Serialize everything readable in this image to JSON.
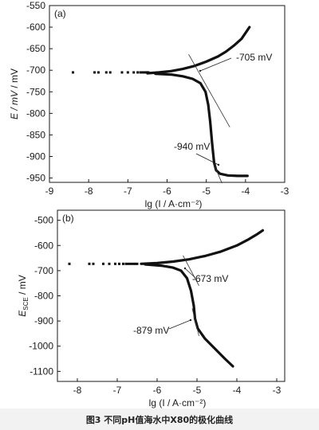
{
  "figure": {
    "caption": "图3   不同pH值海水中X80的极化曲线"
  },
  "chart_data": [
    {
      "type": "line",
      "panel_label": "(a)",
      "xlabel": "lg (I / A·cm⁻²)",
      "ylabel": "E / mV",
      "xlim": [
        -9,
        -3
      ],
      "ylim": [
        -960,
        -550
      ],
      "x_ticks": [
        -9,
        -8,
        -7,
        -6,
        -5,
        -4,
        -3
      ],
      "y_ticks": [
        -550,
        -600,
        -650,
        -700,
        -750,
        -800,
        -850,
        -900,
        -950
      ],
      "series": [
        {
          "anodic": [
            [
              -6.5,
              -707
            ],
            [
              -6.2,
              -705
            ],
            [
              -5.9,
              -702
            ],
            [
              -5.6,
              -697
            ],
            [
              -5.3,
              -690
            ],
            [
              -5.0,
              -680
            ],
            [
              -4.7,
              -668
            ],
            [
              -4.5,
              -657
            ],
            [
              -4.3,
              -643
            ],
            [
              -4.1,
              -627
            ],
            [
              -3.9,
              -600
            ]
          ],
          "cathodic": [
            [
              -6.3,
              -708
            ],
            [
              -5.9,
              -710
            ],
            [
              -5.6,
              -714
            ],
            [
              -5.35,
              -720
            ],
            [
              -5.15,
              -730
            ],
            [
              -5.02,
              -750
            ],
            [
              -4.95,
              -780
            ],
            [
              -4.9,
              -820
            ],
            [
              -4.85,
              -870
            ],
            [
              -4.8,
              -915
            ],
            [
              -4.75,
              -932
            ],
            [
              -4.65,
              -940
            ],
            [
              -4.45,
              -944
            ],
            [
              -4.2,
              -945
            ],
            [
              -3.95,
              -945
            ]
          ],
          "scatter": [
            [
              -8.4,
              -705
            ],
            [
              -7.85,
              -705
            ],
            [
              -7.75,
              -705
            ],
            [
              -7.55,
              -705
            ],
            [
              -7.45,
              -705
            ],
            [
              -7.15,
              -705
            ],
            [
              -7.0,
              -705
            ],
            [
              -6.85,
              -705
            ],
            [
              -6.75,
              -705
            ],
            [
              -6.68,
              -705
            ],
            [
              -6.62,
              -705
            ],
            [
              -6.57,
              -705
            ],
            [
              -6.52,
              -705
            ],
            [
              -6.48,
              -705
            ]
          ]
        }
      ],
      "annotations": [
        {
          "text": "-705 mV",
          "at": [
            -4.95,
            -727
          ]
        },
        {
          "text": "-940 mV",
          "at": [
            -4.75,
            -940
          ]
        }
      ],
      "tangent_lines": [
        {
          "from": [
            -5.45,
            -663
          ],
          "to": [
            -4.4,
            -832
          ]
        },
        {
          "from": [
            -4.82,
            -915
          ],
          "to": [
            -4.6,
            -962
          ]
        }
      ]
    },
    {
      "type": "line",
      "panel_label": "(b)",
      "xlabel": "lg (I / A·cm⁻²)",
      "ylabel": "E",
      "ylabel_sub": "SCE",
      "ylabel_unit": " / mV",
      "xlim": [
        -8.5,
        -2.8
      ],
      "ylim": [
        -1140,
        -460
      ],
      "x_ticks": [
        -8,
        -7,
        -6,
        -5,
        -4,
        -3
      ],
      "y_ticks": [
        -500,
        -600,
        -700,
        -800,
        -900,
        -1000,
        -1100
      ],
      "series": [
        {
          "anodic": [
            [
              -6.4,
              -673
            ],
            [
              -6.0,
              -670
            ],
            [
              -5.6,
              -664
            ],
            [
              -5.2,
              -655
            ],
            [
              -4.8,
              -642
            ],
            [
              -4.4,
              -624
            ],
            [
              -4.0,
              -600
            ],
            [
              -3.7,
              -575
            ],
            [
              -3.5,
              -556
            ],
            [
              -3.35,
              -540
            ]
          ],
          "cathodic": [
            [
              -6.3,
              -675
            ],
            [
              -5.9,
              -680
            ],
            [
              -5.6,
              -688
            ],
            [
              -5.4,
              -700
            ],
            [
              -5.25,
              -730
            ],
            [
              -5.15,
              -780
            ],
            [
              -5.08,
              -840
            ],
            [
              -5.05,
              -890
            ],
            [
              -4.98,
              -930
            ],
            [
              -4.8,
              -970
            ],
            [
              -4.55,
              -1010
            ],
            [
              -4.3,
              -1050
            ],
            [
              -4.1,
              -1080
            ]
          ],
          "scatter": [
            [
              -8.2,
              -673
            ],
            [
              -7.7,
              -673
            ],
            [
              -7.6,
              -673
            ],
            [
              -7.35,
              -673
            ],
            [
              -7.2,
              -673
            ],
            [
              -7.05,
              -673
            ],
            [
              -6.95,
              -673
            ],
            [
              -6.85,
              -673
            ],
            [
              -6.78,
              -673
            ],
            [
              -6.72,
              -673
            ],
            [
              -6.66,
              -673
            ],
            [
              -6.6,
              -673
            ],
            [
              -6.55,
              -673
            ],
            [
              -6.5,
              -673
            ]
          ]
        }
      ],
      "annotations": [
        {
          "text": "-673 mV",
          "at": [
            -5.3,
            -698
          ]
        },
        {
          "text": "-879 mV",
          "at": [
            -5.08,
            -904
          ]
        }
      ],
      "tangent_lines": [
        {
          "from": [
            -5.35,
            -640
          ],
          "to": [
            -4.95,
            -760
          ]
        },
        {
          "from": [
            -5.12,
            -850
          ],
          "to": [
            -4.95,
            -960
          ]
        }
      ]
    }
  ]
}
